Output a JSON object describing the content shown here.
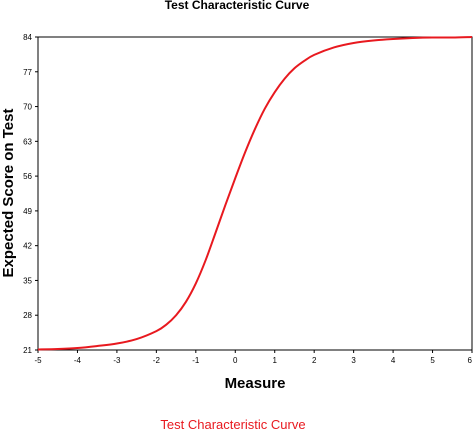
{
  "chart_data": {
    "type": "line",
    "title": "Test Characteristic Curve",
    "xlabel": "Measure",
    "ylabel": "Expected Score on Test",
    "xlim": [
      -5,
      6
    ],
    "ylim": [
      21,
      84
    ],
    "xticks": [
      -5,
      -4,
      -3,
      -2,
      -1,
      0,
      1,
      2,
      3,
      4,
      5,
      6
    ],
    "yticks": [
      21,
      28,
      35,
      42,
      49,
      56,
      63,
      70,
      77,
      84
    ],
    "grid": false,
    "legend": "none",
    "series_color": "#e8191f",
    "x": [
      -5,
      -4.5,
      -4,
      -3.5,
      -3,
      -2.5,
      -2,
      -1.75,
      -1.5,
      -1.25,
      -1,
      -0.75,
      -0.5,
      -0.25,
      0,
      0.25,
      0.5,
      0.75,
      1,
      1.25,
      1.5,
      1.75,
      2,
      2.5,
      3,
      3.5,
      4,
      4.5,
      5,
      5.5,
      6
    ],
    "series": [
      {
        "values": [
          21.1,
          21.2,
          21.4,
          21.8,
          22.3,
          23.2,
          24.8,
          26.1,
          28.0,
          30.7,
          34.4,
          39.1,
          44.6,
          50.2,
          55.6,
          60.8,
          65.5,
          69.6,
          72.9,
          75.6,
          77.7,
          79.2,
          80.4,
          81.9,
          82.8,
          83.3,
          83.6,
          83.8,
          83.9,
          83.9,
          84.0
        ]
      }
    ]
  },
  "caption": "Test Characteristic Curve"
}
